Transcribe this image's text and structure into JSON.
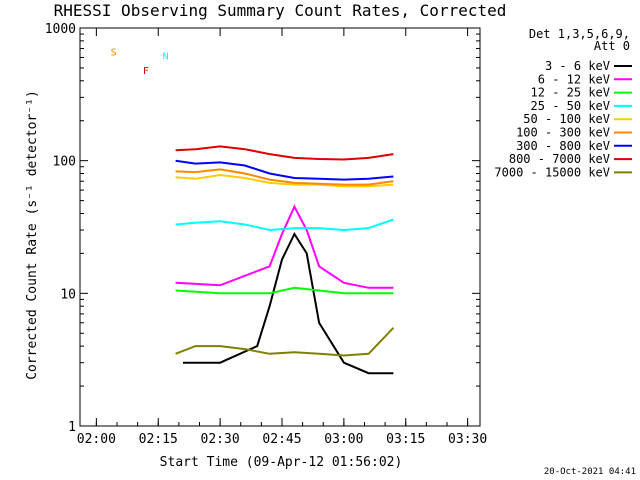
{
  "chart_data": {
    "type": "line",
    "title": "RHESSI Observing Summary Count Rates, Corrected",
    "xlabel": "Start Time (09-Apr-12 01:56:02)",
    "ylabel": "Corrected Count Rate (s⁻¹ detector⁻¹)",
    "y_scale": "log",
    "ylim": [
      1,
      1000
    ],
    "y_ticks": [
      1,
      10,
      100,
      1000
    ],
    "y_tick_labels": [
      "1",
      "10",
      "100",
      "1000"
    ],
    "xlim": [
      1.9339,
      3.55
    ],
    "x_ticks": [
      2.0,
      2.25,
      2.5,
      2.75,
      3.0,
      3.25,
      3.5
    ],
    "x_tick_labels": [
      "02:00",
      "02:15",
      "02:30",
      "02:45",
      "03:00",
      "03:15",
      "03:30"
    ],
    "legend": {
      "header_lines": [
        "Det 1,3,5,6,9,",
        "Att 0"
      ],
      "placement": "right"
    },
    "series": [
      {
        "name": "3 - 6 keV",
        "color": "#000000",
        "x": [
          2.35,
          2.5,
          2.65,
          2.7,
          2.75,
          2.8,
          2.85,
          2.9,
          3.0,
          3.1,
          3.2
        ],
        "y": [
          3,
          3,
          4,
          8,
          18,
          28,
          20,
          6,
          3,
          2.5,
          2.5
        ]
      },
      {
        "name": "6 - 12 keV",
        "color": "#ff00ff",
        "x": [
          2.32,
          2.5,
          2.7,
          2.75,
          2.8,
          2.85,
          2.9,
          3.0,
          3.1,
          3.2
        ],
        "y": [
          12,
          11.5,
          16,
          28,
          45,
          30,
          16,
          12,
          11,
          11
        ]
      },
      {
        "name": "12 - 25 keV",
        "color": "#00ff00",
        "x": [
          2.32,
          2.5,
          2.7,
          2.8,
          2.9,
          3.0,
          3.1,
          3.2
        ],
        "y": [
          10.5,
          10,
          10,
          11,
          10.5,
          10,
          10,
          10
        ]
      },
      {
        "name": "25 - 50 keV",
        "color": "#00ffff",
        "x": [
          2.32,
          2.4,
          2.5,
          2.6,
          2.7,
          2.8,
          2.9,
          3.0,
          3.1,
          3.2
        ],
        "y": [
          33,
          34,
          35,
          33,
          30,
          31,
          31,
          30,
          31,
          36
        ]
      },
      {
        "name": "50 - 100 keV",
        "color": "#ffcc00",
        "x": [
          2.32,
          2.4,
          2.5,
          2.6,
          2.7,
          2.8,
          2.9,
          3.0,
          3.1,
          3.2
        ],
        "y": [
          75,
          73,
          78,
          74,
          68,
          66,
          66,
          64,
          64,
          66
        ]
      },
      {
        "name": "100 - 300 keV",
        "color": "#ff8800",
        "x": [
          2.32,
          2.4,
          2.5,
          2.6,
          2.7,
          2.8,
          2.9,
          3.0,
          3.1,
          3.2
        ],
        "y": [
          83,
          82,
          86,
          80,
          72,
          68,
          67,
          66,
          66,
          70
        ]
      },
      {
        "name": "300 - 800 keV",
        "color": "#0000ff",
        "x": [
          2.32,
          2.4,
          2.5,
          2.6,
          2.7,
          2.8,
          2.9,
          3.0,
          3.1,
          3.2
        ],
        "y": [
          100,
          95,
          97,
          92,
          80,
          74,
          73,
          72,
          73,
          76
        ]
      },
      {
        "name": "800 - 7000 keV",
        "color": "#dd0000",
        "x": [
          2.32,
          2.4,
          2.5,
          2.6,
          2.7,
          2.8,
          2.9,
          3.0,
          3.1,
          3.2
        ],
        "y": [
          120,
          122,
          128,
          122,
          112,
          105,
          103,
          102,
          105,
          112
        ]
      },
      {
        "name": "7000 - 15000 keV",
        "color": "#808000",
        "x": [
          2.32,
          2.4,
          2.5,
          2.6,
          2.7,
          2.8,
          2.9,
          3.0,
          3.1,
          3.2
        ],
        "y": [
          3.5,
          4,
          4,
          3.8,
          3.5,
          3.6,
          3.5,
          3.4,
          3.5,
          5.5
        ]
      }
    ],
    "flag_labels": [
      {
        "text": "S",
        "color": "#ff8800"
      },
      {
        "text": "N",
        "color": "#00ffff"
      },
      {
        "text": "F",
        "color": "#dd0000"
      }
    ],
    "footer_timestamp": "20-Oct-2021 04:41"
  }
}
